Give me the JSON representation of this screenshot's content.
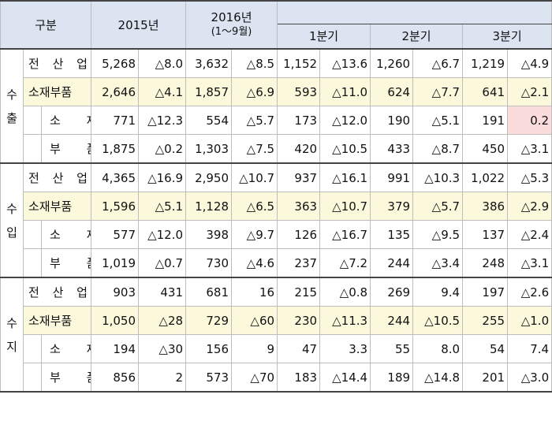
{
  "header": {
    "category": "구분",
    "y2015": "2015년",
    "y2016_line1": "2016년",
    "y2016_line2": "(1～9월)",
    "q1": "1분기",
    "q2": "2분기",
    "q3": "3분기"
  },
  "sections": [
    {
      "label": "수출",
      "rows": [
        {
          "name": "전 산 업",
          "v": [
            "5,268",
            "△8.0",
            "3,632",
            "△8.5",
            "1,152",
            "△13.6",
            "1,260",
            "△6.7",
            "1,219",
            "△4.9"
          ]
        },
        {
          "name": "소재부품",
          "v": [
            "2,646",
            "△4.1",
            "1,857",
            "△6.9",
            "593",
            "△11.0",
            "624",
            "△7.7",
            "641",
            "△2.1"
          ]
        },
        {
          "name": "소 재",
          "v": [
            "771",
            "△12.3",
            "554",
            "△5.7",
            "173",
            "△12.0",
            "190",
            "△5.1",
            "191",
            "0.2"
          ]
        },
        {
          "name": "부 품",
          "v": [
            "1,875",
            "△0.2",
            "1,303",
            "△7.5",
            "420",
            "△10.5",
            "433",
            "△8.7",
            "450",
            "△3.1"
          ]
        }
      ]
    },
    {
      "label": "수입",
      "rows": [
        {
          "name": "전 산 업",
          "v": [
            "4,365",
            "△16.9",
            "2,950",
            "△10.7",
            "937",
            "△16.1",
            "991",
            "△10.3",
            "1,022",
            "△5.3"
          ]
        },
        {
          "name": "소재부품",
          "v": [
            "1,596",
            "△5.1",
            "1,128",
            "△6.5",
            "363",
            "△10.7",
            "379",
            "△5.7",
            "386",
            "△2.9"
          ]
        },
        {
          "name": "소 재",
          "v": [
            "577",
            "△12.0",
            "398",
            "△9.7",
            "126",
            "△16.7",
            "135",
            "△9.5",
            "137",
            "△2.4"
          ]
        },
        {
          "name": "부 품",
          "v": [
            "1,019",
            "△0.7",
            "730",
            "△4.6",
            "237",
            "△7.2",
            "244",
            "△3.4",
            "248",
            "△3.1"
          ]
        }
      ]
    },
    {
      "label": "수지",
      "rows": [
        {
          "name": "전 산 업",
          "v": [
            "903",
            "431",
            "681",
            "16",
            "215",
            "△0.8",
            "269",
            "9.4",
            "197",
            "△2.6"
          ]
        },
        {
          "name": "소재부품",
          "v": [
            "1,050",
            "△28",
            "729",
            "△60",
            "230",
            "△11.3",
            "244",
            "△10.5",
            "255",
            "△1.0"
          ]
        },
        {
          "name": "소 재",
          "v": [
            "194",
            "△30",
            "156",
            "9",
            "47",
            "3.3",
            "55",
            "8.0",
            "54",
            "7.4"
          ]
        },
        {
          "name": "부 품",
          "v": [
            "856",
            "2",
            "573",
            "△70",
            "183",
            "△14.4",
            "189",
            "△14.8",
            "201",
            "△3.0"
          ]
        }
      ]
    }
  ],
  "colors": {
    "header_bg": "#dbe4f0",
    "highlight_bg": "#fbf8dc",
    "pink_cell": "#fbdcdc"
  }
}
